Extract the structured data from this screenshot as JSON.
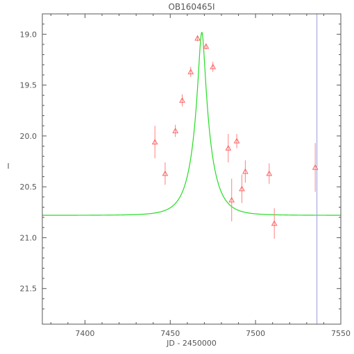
{
  "chart_data": {
    "type": "scatter",
    "title": "OB160465I",
    "xlabel": "JD - 2450000",
    "ylabel": "I",
    "xlim": [
      7375,
      7550
    ],
    "ylim": [
      21.85,
      18.8
    ],
    "y_inverted": true,
    "grid": false,
    "x_ticks": [
      7400,
      7450,
      7500,
      7550
    ],
    "x_tick_labels": [
      "7400",
      "7450",
      "7500",
      "7550"
    ],
    "y_ticks": [
      19.0,
      19.5,
      20.0,
      20.5,
      21.0,
      21.5
    ],
    "y_tick_labels": [
      "19.0",
      "19.5",
      "20.0",
      "20.5",
      "21.0",
      "21.5"
    ],
    "points": [
      {
        "x": 7441.0,
        "y": 20.06,
        "err": 0.16
      },
      {
        "x": 7447.0,
        "y": 20.37,
        "err": 0.11
      },
      {
        "x": 7453.0,
        "y": 19.95,
        "err": 0.06
      },
      {
        "x": 7457.0,
        "y": 19.65,
        "err": 0.06
      },
      {
        "x": 7462.0,
        "y": 19.37,
        "err": 0.05
      },
      {
        "x": 7466.0,
        "y": 19.04,
        "err": 0.03
      },
      {
        "x": 7471.0,
        "y": 19.12,
        "err": 0.03
      },
      {
        "x": 7475.0,
        "y": 19.32,
        "err": 0.05
      },
      {
        "x": 7484.0,
        "y": 20.12,
        "err": 0.14
      },
      {
        "x": 7486.0,
        "y": 20.63,
        "err": 0.21
      },
      {
        "x": 7489.0,
        "y": 20.05,
        "err": 0.07
      },
      {
        "x": 7492.0,
        "y": 20.52,
        "err": 0.14
      },
      {
        "x": 7494.0,
        "y": 20.35,
        "err": 0.11
      },
      {
        "x": 7508.0,
        "y": 20.37,
        "err": 0.1
      },
      {
        "x": 7511.0,
        "y": 20.86,
        "err": 0.15
      },
      {
        "x": 7535.0,
        "y": 20.31,
        "err": 0.24
      }
    ],
    "model": {
      "t0": 7468.5,
      "tE": 10.0,
      "u0": 0.175,
      "base": 20.78,
      "peak": 18.98
    },
    "vertical_line_x": 7536.0,
    "colors": {
      "points": "#ff6060",
      "errorbars": "#ff8080",
      "model": "#22dd22",
      "vline": "#9999dd",
      "axes": "#555555"
    }
  }
}
